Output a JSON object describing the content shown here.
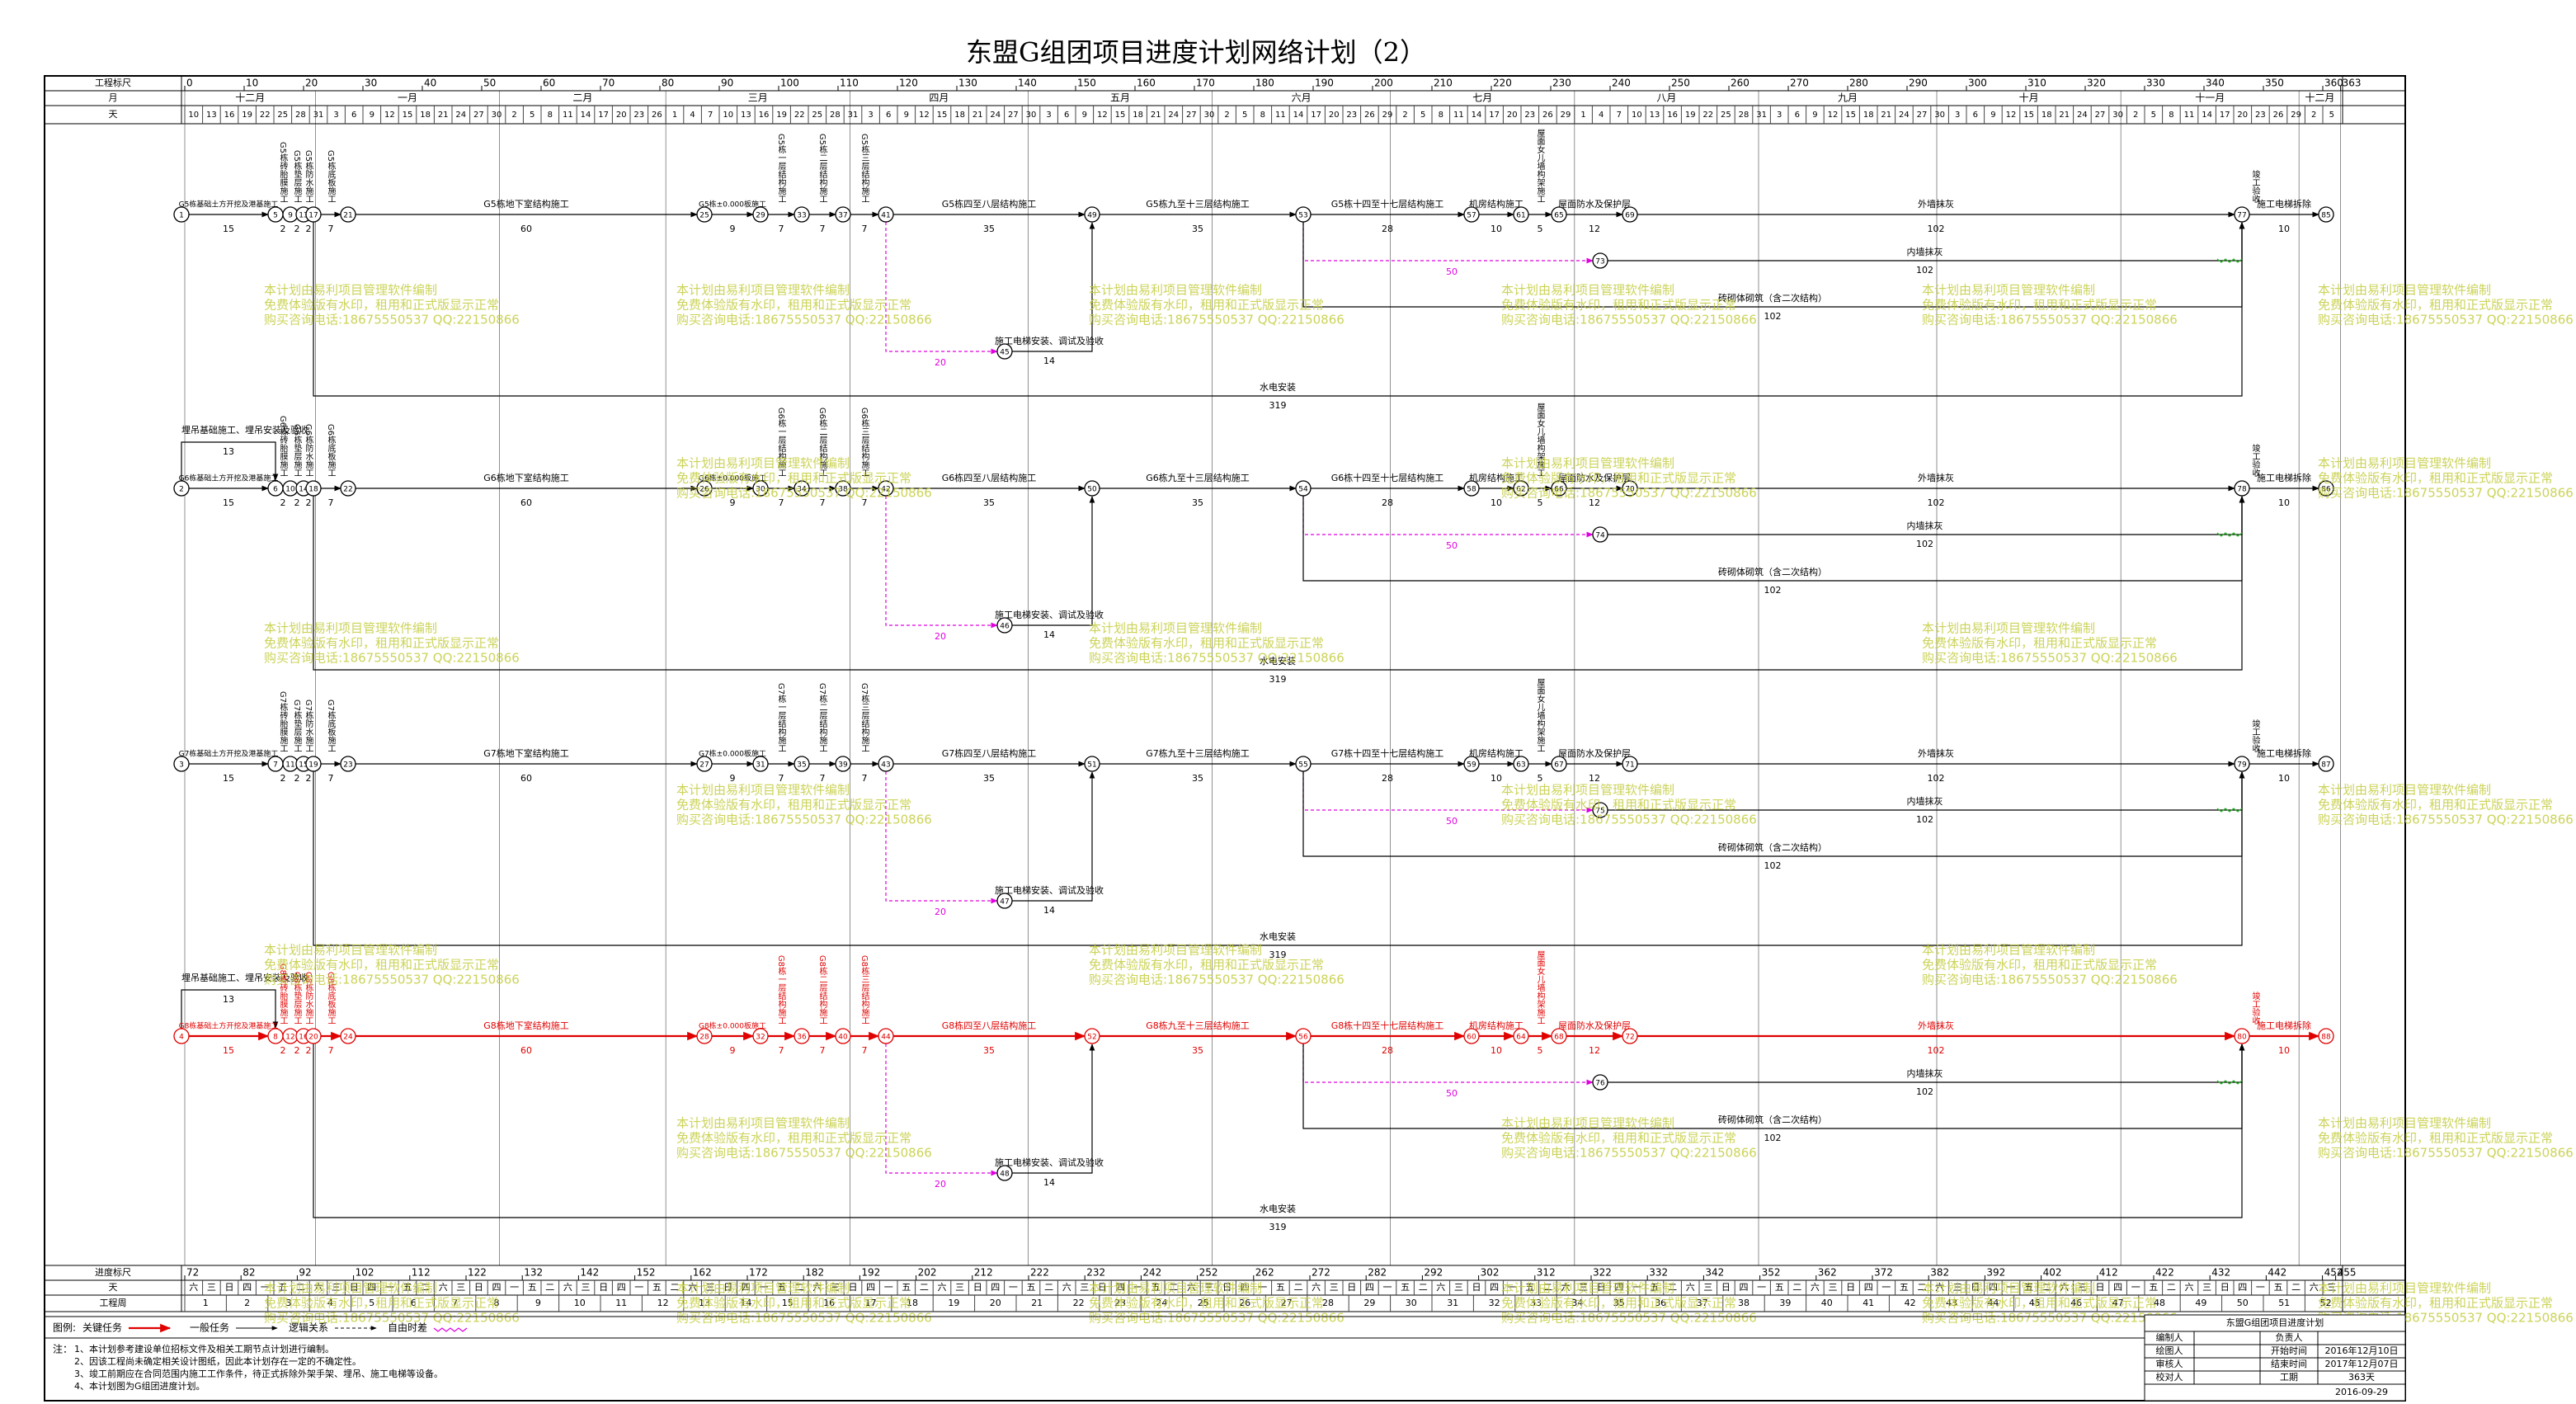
{
  "title": "东盟G组团项目进度计划网络计划（2）",
  "scale": {
    "left_labels": [
      "工程标尺",
      "月",
      "天"
    ],
    "bottom_labels": [
      "进度标尺",
      "天",
      "工程周"
    ],
    "top_ruler": [
      0,
      10,
      20,
      30,
      40,
      50,
      60,
      70,
      80,
      90,
      100,
      110,
      120,
      130,
      140,
      150,
      160,
      170,
      180,
      190,
      200,
      210,
      220,
      230,
      240,
      250,
      260,
      270,
      280,
      290,
      300,
      310,
      320,
      330,
      340,
      350,
      360,
      363
    ],
    "months": [
      "十二月",
      "一月",
      "二月",
      "三月",
      "四月",
      "五月",
      "六月",
      "七月",
      "八月",
      "九月",
      "十月",
      "十一月",
      "十二月"
    ],
    "days": [
      10,
      13,
      16,
      19,
      22,
      25,
      28,
      31,
      3,
      6,
      9,
      12,
      15,
      18,
      21,
      24,
      27,
      30,
      2,
      5,
      8,
      11,
      14,
      17,
      20,
      23,
      26,
      1,
      4,
      7,
      10,
      13,
      16,
      19,
      22,
      25,
      28,
      31,
      3,
      6,
      9,
      12,
      15,
      18,
      21,
      24,
      27,
      30,
      3,
      6,
      9,
      12,
      15,
      18,
      21,
      24,
      27,
      30,
      2,
      5,
      8,
      11,
      14,
      17,
      20,
      23,
      26,
      29,
      2,
      5,
      8,
      11,
      14,
      17,
      20,
      23,
      26,
      29,
      1,
      4,
      7,
      10,
      13,
      16,
      19,
      22,
      25,
      28,
      31,
      3,
      6,
      9,
      12,
      15,
      18,
      21,
      24,
      27,
      30,
      3,
      6,
      9,
      12,
      15,
      18,
      21,
      24,
      27,
      30,
      2,
      5,
      8,
      11,
      14,
      17,
      20,
      23,
      26,
      29,
      2,
      5
    ],
    "bottom_ruler": [
      72,
      82,
      92,
      102,
      112,
      122,
      132,
      142,
      152,
      162,
      172,
      182,
      192,
      202,
      212,
      222,
      232,
      242,
      252,
      262,
      272,
      282,
      292,
      302,
      312,
      322,
      332,
      342,
      352,
      362,
      372,
      382,
      392,
      402,
      412,
      422,
      432,
      442,
      452,
      455
    ],
    "weekdays": [
      "六",
      "三",
      "日",
      "四",
      "一",
      "五",
      "二",
      "六",
      "三",
      "日",
      "四",
      "一",
      "五",
      "二",
      "六",
      "三",
      "日",
      "四",
      "一",
      "五",
      "二",
      "六",
      "三",
      "日",
      "四",
      "一",
      "五",
      "二",
      "六",
      "三",
      "日",
      "四",
      "一",
      "五",
      "二",
      "六",
      "三",
      "日",
      "四",
      "一",
      "五",
      "二",
      "六",
      "三",
      "日",
      "四",
      "一",
      "五",
      "二",
      "六",
      "三",
      "日",
      "四",
      "一",
      "五",
      "二",
      "六",
      "三",
      "日",
      "四",
      "一",
      "五",
      "二",
      "六",
      "三",
      "日",
      "四",
      "一",
      "五",
      "二",
      "六",
      "三",
      "日",
      "四",
      "一",
      "五",
      "二",
      "六",
      "三",
      "日",
      "四",
      "一",
      "五",
      "二",
      "六",
      "三",
      "日",
      "四",
      "一",
      "五",
      "二",
      "六",
      "三",
      "日",
      "四",
      "一",
      "五",
      "二",
      "六",
      "三",
      "日",
      "四",
      "一",
      "五",
      "二",
      "六",
      "三",
      "日",
      "四",
      "一",
      "五",
      "二",
      "六",
      "三",
      "日",
      "四",
      "一",
      "五",
      "二",
      "六",
      "三"
    ],
    "weeks": [
      1,
      2,
      3,
      4,
      5,
      6,
      7,
      8,
      9,
      10,
      11,
      12,
      13,
      14,
      15,
      16,
      17,
      18,
      19,
      20,
      21,
      22,
      23,
      24,
      25,
      26,
      27,
      28,
      29,
      30,
      31,
      32,
      33,
      34,
      35,
      36,
      37,
      38,
      39,
      40,
      41,
      42,
      43,
      44,
      45,
      46,
      47,
      48,
      49,
      50,
      51,
      52
    ]
  },
  "network": {
    "rows": [
      {
        "critical": false,
        "milestone": "竣工验收",
        "tasks": [
          {
            "label": "G5栋基础土方开挖及港基施工",
            "duration": 15
          },
          {
            "label": "G5栋砖胎膜施工",
            "duration": 2
          },
          {
            "label": "G5栋垫层施工",
            "duration": 2
          },
          {
            "label": "G5栋防水施工",
            "duration": 2
          },
          {
            "label": "G5栋底板施工",
            "duration": 7
          },
          {
            "label": "G5栋地下室结构施工",
            "duration": 60
          },
          {
            "label": "G5栋±0.000板施工",
            "duration": 9
          },
          {
            "label": "G5栋一层结构施工",
            "duration": 7
          },
          {
            "label": "G5栋二层结构施工",
            "duration": 7
          },
          {
            "label": "G5栋三层结构施工",
            "duration": 7
          },
          {
            "label": "G5栋四至八层结构施工",
            "duration": 35
          },
          {
            "label": "G5栋九至十三层结构施工",
            "duration": 35
          },
          {
            "label": "G5栋十四至十七层结构施工",
            "duration": 28
          },
          {
            "label": "机房结构施工",
            "duration": 10
          },
          {
            "label": "屋面女儿墙构架施工",
            "duration": 5
          },
          {
            "label": "屋面防水及保护层",
            "duration": 12
          },
          {
            "label": "外墙抹灰",
            "duration": 102
          },
          {
            "label": "施工电梯拆除",
            "duration": 10
          }
        ],
        "nodes": [
          1,
          5,
          9,
          13,
          17,
          21,
          25,
          29,
          33,
          37,
          41,
          49,
          53,
          57,
          61,
          65,
          69,
          77,
          85
        ],
        "branches": [
          {
            "label": "内墙抹灰",
            "duration": 102,
            "node": 73
          },
          {
            "label": "砖砌体砌筑（含二次结构）",
            "duration": 102
          },
          {
            "label": "施工电梯安装、调试及验收",
            "duration": 14,
            "node": 45
          },
          {
            "label": "水电安装",
            "duration": 319
          }
        ],
        "lags": [
          50,
          20
        ]
      },
      {
        "critical": false,
        "milestone": "竣工验收",
        "crane": {
          "label": "埋吊基础施工、埋吊安装及验收",
          "duration": 13
        },
        "tasks": [
          {
            "label": "G6栋基础土方开挖及港基施工",
            "duration": 15
          },
          {
            "label": "G6栋砖胎膜施工",
            "duration": 2
          },
          {
            "label": "G6栋垫层施工",
            "duration": 2
          },
          {
            "label": "G6栋防水施工",
            "duration": 2
          },
          {
            "label": "G6栋底板施工",
            "duration": 7
          },
          {
            "label": "G6栋地下室结构施工",
            "duration": 60
          },
          {
            "label": "G6栋±0.000板施工",
            "duration": 9
          },
          {
            "label": "G6栋一层结构施工",
            "duration": 7
          },
          {
            "label": "G6栋二层结构施工",
            "duration": 7
          },
          {
            "label": "G6栋三层结构施工",
            "duration": 7
          },
          {
            "label": "G6栋四至八层结构施工",
            "duration": 35
          },
          {
            "label": "G6栋九至十三层结构施工",
            "duration": 35
          },
          {
            "label": "G6栋十四至十七层结构施工",
            "duration": 28
          },
          {
            "label": "机房结构施工",
            "duration": 10
          },
          {
            "label": "屋面女儿墙构架施工",
            "duration": 5
          },
          {
            "label": "屋面防水及保护层",
            "duration": 12
          },
          {
            "label": "外墙抹灰",
            "duration": 102
          },
          {
            "label": "施工电梯拆除",
            "duration": 10
          }
        ],
        "nodes": [
          2,
          6,
          10,
          14,
          18,
          22,
          26,
          30,
          34,
          38,
          42,
          50,
          54,
          58,
          62,
          66,
          70,
          78,
          86
        ],
        "branches": [
          {
            "label": "内墙抹灰",
            "duration": 102,
            "node": 74
          },
          {
            "label": "砖砌体砌筑（含二次结构）",
            "duration": 102
          },
          {
            "label": "施工电梯安装、调试及验收",
            "duration": 14,
            "node": 46
          },
          {
            "label": "水电安装",
            "duration": 319
          }
        ],
        "lags": [
          50,
          20
        ]
      },
      {
        "critical": false,
        "milestone": "竣工验收",
        "tasks": [
          {
            "label": "G7栋基础土方开挖及港基施工",
            "duration": 15
          },
          {
            "label": "G7栋砖胎膜施工",
            "duration": 2
          },
          {
            "label": "G7栋垫层施工",
            "duration": 2
          },
          {
            "label": "G7栋防水施工",
            "duration": 2
          },
          {
            "label": "G7栋底板施工",
            "duration": 7
          },
          {
            "label": "G7栋地下室结构施工",
            "duration": 60
          },
          {
            "label": "G7栋±0.000板施工",
            "duration": 9
          },
          {
            "label": "G7栋一层结构施工",
            "duration": 7
          },
          {
            "label": "G7栋二层结构施工",
            "duration": 7
          },
          {
            "label": "G7栋三层结构施工",
            "duration": 7
          },
          {
            "label": "G7栋四至八层结构施工",
            "duration": 35
          },
          {
            "label": "G7栋九至十三层结构施工",
            "duration": 35
          },
          {
            "label": "G7栋十四至十七层结构施工",
            "duration": 28
          },
          {
            "label": "机房结构施工",
            "duration": 10
          },
          {
            "label": "屋面女儿墙构架施工",
            "duration": 5
          },
          {
            "label": "屋面防水及保护层",
            "duration": 12
          },
          {
            "label": "外墙抹灰",
            "duration": 102
          },
          {
            "label": "施工电梯拆除",
            "duration": 10
          }
        ],
        "nodes": [
          3,
          7,
          11,
          15,
          19,
          23,
          27,
          31,
          35,
          39,
          43,
          51,
          55,
          59,
          63,
          67,
          71,
          79,
          87
        ],
        "branches": [
          {
            "label": "内墙抹灰",
            "duration": 102,
            "node": 75
          },
          {
            "label": "砖砌体砌筑（含二次结构）",
            "duration": 102
          },
          {
            "label": "施工电梯安装、调试及验收",
            "duration": 14,
            "node": 47
          },
          {
            "label": "水电安装",
            "duration": 319
          }
        ],
        "lags": [
          50,
          20
        ]
      },
      {
        "critical": true,
        "milestone": "竣工验收",
        "crane": {
          "label": "埋吊基础施工、埋吊安装及验收",
          "duration": 13
        },
        "tasks": [
          {
            "label": "G8栋基础土方开挖及港基施工",
            "duration": 15
          },
          {
            "label": "G8栋砖胎膜施工",
            "duration": 2
          },
          {
            "label": "G8栋垫层施工",
            "duration": 2
          },
          {
            "label": "G8栋防水施工",
            "duration": 2
          },
          {
            "label": "G8栋底板施工",
            "duration": 7
          },
          {
            "label": "G8栋地下室结构施工",
            "duration": 60
          },
          {
            "label": "G8栋±0.000板施工",
            "duration": 9
          },
          {
            "label": "G8栋一层结构施工",
            "duration": 7
          },
          {
            "label": "G8栋二层结构施工",
            "duration": 7
          },
          {
            "label": "G8栋三层结构施工",
            "duration": 7
          },
          {
            "label": "G8栋四至八层结构施工",
            "duration": 35
          },
          {
            "label": "G8栋九至十三层结构施工",
            "duration": 35
          },
          {
            "label": "G8栋十四至十七层结构施工",
            "duration": 28
          },
          {
            "label": "机房结构施工",
            "duration": 10
          },
          {
            "label": "屋面女儿墙构架施工",
            "duration": 5
          },
          {
            "label": "屋面防水及保护层",
            "duration": 12
          },
          {
            "label": "外墙抹灰",
            "duration": 102
          },
          {
            "label": "施工电梯拆除",
            "duration": 10
          }
        ],
        "nodes": [
          4,
          8,
          12,
          16,
          20,
          24,
          28,
          32,
          36,
          40,
          44,
          52,
          56,
          60,
          64,
          68,
          72,
          80,
          88
        ],
        "branches": [
          {
            "label": "内墙抹灰",
            "duration": 102,
            "node": 76
          },
          {
            "label": "砖砌体砌筑（含二次结构）",
            "duration": 102
          },
          {
            "label": "施工电梯安装、调试及验收",
            "duration": 14,
            "node": 48
          },
          {
            "label": "水电安装",
            "duration": 319
          }
        ],
        "lags": [
          50,
          20
        ]
      }
    ]
  },
  "watermark": [
    "本计划由易利项目管理软件编制",
    "免费体验版有水印，租用和正式版显示正常",
    "购买咨询电话:18675550537 QQ:22150866"
  ],
  "legend": {
    "head": "图例:",
    "items": [
      "关键任务",
      "一般任务",
      "逻辑关系",
      "自由时差"
    ]
  },
  "notes": {
    "head": "注：",
    "lines": [
      "1、本计划参考建设单位招标文件及相关工期节点计划进行编制。",
      "2、因该工程尚未确定相关设计图纸，因此本计划存在一定的不确定性。",
      "3、竣工前期应在合同范围内施工工作条件，待正式拆除外架手架、埋吊、施工电梯等设备。",
      "4、本计划图为G组团进度计划。"
    ]
  },
  "title_block": {
    "title": "东盟G组团项目进度计划",
    "rows": [
      [
        "编制人",
        "负责人"
      ],
      [
        "绘图人",
        "开始时间",
        "2016年12月10日"
      ],
      [
        "审核人",
        "结束时间",
        "2017年12月07日"
      ],
      [
        "校对人",
        "工期",
        "363天"
      ]
    ],
    "date": "2016-09-29"
  }
}
